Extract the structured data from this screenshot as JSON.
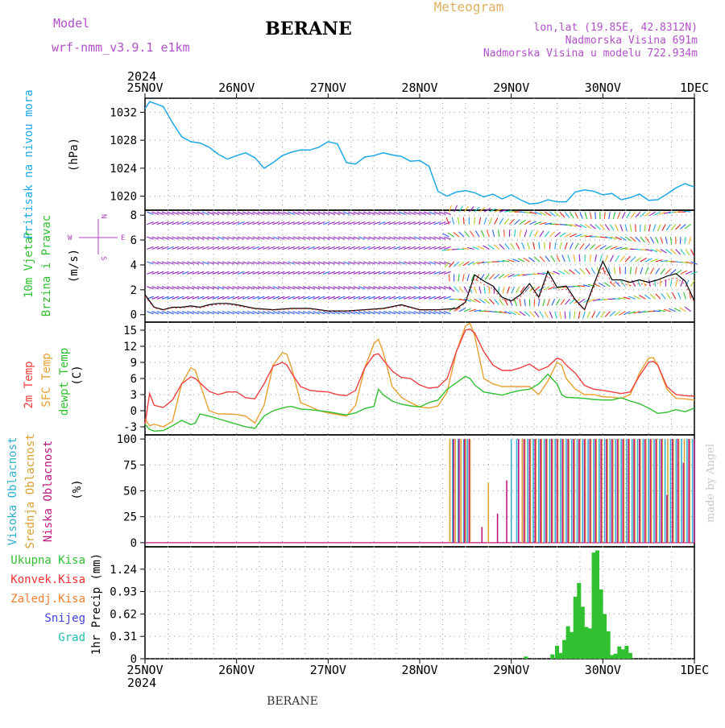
{
  "header": {
    "model_label": "Model",
    "model_name": "wrf-nmm_v3.9.1 e1km",
    "station": "BERANE",
    "product": "Meteogram",
    "lonlat": "lon,lat (19.85E, 42.8312N)",
    "elevation": "Nadmorska Visina 691m",
    "elevation_model": "Nadmorska Visina u modelu 722.934m",
    "footer_station": "BERANE",
    "credit": "made by Angel"
  },
  "time_axis": {
    "year": "2024",
    "ticks": [
      "25NOV",
      "26NOV",
      "27NOV",
      "28NOV",
      "29NOV",
      "30NOV",
      "1DEC"
    ]
  },
  "colors": {
    "pressure": "#1ea8e6",
    "temp2m": "#f04040",
    "sfctemp": "#e8a030",
    "dewpt": "#30c030",
    "high_cloud": "#30b0d0",
    "mid_cloud": "#d8a030",
    "low_cloud": "#c01880",
    "precip_total": "#30c030",
    "conv": "#f03030",
    "frz": "#f08030",
    "snow": "#4040e0",
    "hail": "#20c0b0",
    "wind_label": "#30c030",
    "compass": "#b040c0"
  },
  "chart_data": [
    {
      "type": "line",
      "panel": "pressure",
      "ylabel": "Pritisak na nivou mora",
      "units": "(hPa)",
      "ylim": [
        1018,
        1034
      ],
      "yticks": [
        "1032",
        "1028",
        "1024",
        "1020"
      ],
      "x_days": [
        0,
        0.05,
        0.1,
        0.2,
        0.3,
        0.4,
        0.5,
        0.6,
        0.7,
        0.8,
        0.9,
        1.0,
        1.1,
        1.2,
        1.3,
        1.4,
        1.5,
        1.6,
        1.7,
        1.8,
        1.9,
        2.0,
        2.1,
        2.2,
        2.3,
        2.4,
        2.5,
        2.6,
        2.7,
        2.8,
        2.9,
        3.0,
        3.1,
        3.2,
        3.3,
        3.4,
        3.5,
        3.6,
        3.7,
        3.8,
        3.9,
        4.0,
        4.1,
        4.2,
        4.3,
        4.4,
        4.5,
        4.6,
        4.7,
        4.8,
        4.9,
        5.0,
        5.1,
        5.2,
        5.3,
        5.4,
        5.5,
        5.6,
        5.7,
        5.8,
        5.9,
        6.0
      ],
      "series": [
        {
          "name": "Pritisak na nivou mora",
          "values": [
            1032.5,
            1033.5,
            1033.3,
            1032.8,
            1030.5,
            1028.5,
            1027.8,
            1027.6,
            1027.0,
            1026.0,
            1025.3,
            1025.8,
            1026.2,
            1025.5,
            1024.0,
            1024.8,
            1025.8,
            1026.3,
            1026.6,
            1026.6,
            1027.0,
            1027.8,
            1027.5,
            1024.8,
            1024.6,
            1025.6,
            1025.8,
            1026.2,
            1025.9,
            1025.7,
            1025.0,
            1025.1,
            1024.3,
            1020.7,
            1020.0,
            1020.6,
            1020.8,
            1020.5,
            1019.9,
            1020.3,
            1019.6,
            1020.2,
            1019.5,
            1018.9,
            1019.0,
            1019.5,
            1019.2,
            1019.2,
            1020.6,
            1020.9,
            1020.7,
            1020.2,
            1020.4,
            1019.5,
            1019.8,
            1020.3,
            1019.4,
            1019.5,
            1020.3,
            1021.2,
            1021.8,
            1021.3
          ]
        }
      ]
    },
    {
      "type": "line",
      "panel": "wind",
      "ylabel": "10m Vjetar Brzina i Pravac",
      "units": "(m/s)",
      "compass_n": "N",
      "compass_s": "S",
      "compass_e": "E",
      "compass_w": "W",
      "ylim": [
        -0.6,
        8.4
      ],
      "yticks": [
        "8",
        "6",
        "4",
        "2",
        "0"
      ],
      "x_days": [
        0,
        0.1,
        0.2,
        0.3,
        0.4,
        0.5,
        0.6,
        0.7,
        0.8,
        0.9,
        1.0,
        1.2,
        1.4,
        1.6,
        1.8,
        2.0,
        2.2,
        2.4,
        2.6,
        2.8,
        3.0,
        3.2,
        3.4,
        3.5,
        3.6,
        3.7,
        3.8,
        3.9,
        4.0,
        4.1,
        4.2,
        4.3,
        4.4,
        4.5,
        4.6,
        4.7,
        4.8,
        4.9,
        5.0,
        5.1,
        5.2,
        5.3,
        5.4,
        5.5,
        5.6,
        5.7,
        5.8,
        5.9,
        6.0
      ],
      "series": [
        {
          "name": "speed",
          "values": [
            1.6,
            0.6,
            0.4,
            0.6,
            0.6,
            0.7,
            0.6,
            0.8,
            0.9,
            0.9,
            0.8,
            0.5,
            0.4,
            0.5,
            0.5,
            0.3,
            0.3,
            0.4,
            0.5,
            0.8,
            0.4,
            0.4,
            0.5,
            1.0,
            3.2,
            2.7,
            2.3,
            1.4,
            1.1,
            1.6,
            2.5,
            1.4,
            3.5,
            2.2,
            2.3,
            1.2,
            0.4,
            2.4,
            4.3,
            2.8,
            2.8,
            2.6,
            2.8,
            2.6,
            2.8,
            3.1,
            3.3,
            2.7,
            1.1
          ]
        }
      ]
    },
    {
      "type": "line",
      "panel": "temperature",
      "ylabel_2m": "2m Temp",
      "ylabel_sfc": "SFC Temp",
      "ylabel_dew": "dewpt Temp",
      "units": "(C)",
      "ylim": [
        -4.5,
        16.5
      ],
      "yticks": [
        "15",
        "12",
        "9",
        "6",
        "3",
        "0",
        "-3"
      ],
      "x_days": [
        0,
        0.05,
        0.1,
        0.2,
        0.3,
        0.4,
        0.5,
        0.55,
        0.6,
        0.7,
        0.8,
        0.9,
        1.0,
        1.1,
        1.2,
        1.3,
        1.4,
        1.5,
        1.55,
        1.6,
        1.7,
        1.8,
        1.9,
        2.0,
        2.1,
        2.2,
        2.3,
        2.4,
        2.5,
        2.55,
        2.6,
        2.7,
        2.8,
        2.9,
        3.0,
        3.1,
        3.2,
        3.3,
        3.4,
        3.5,
        3.55,
        3.6,
        3.7,
        3.8,
        3.9,
        4.0,
        4.1,
        4.2,
        4.3,
        4.4,
        4.5,
        4.55,
        4.6,
        4.7,
        4.8,
        4.9,
        5.0,
        5.1,
        5.2,
        5.3,
        5.4,
        5.5,
        5.55,
        5.6,
        5.7,
        5.8,
        5.9,
        6.0
      ],
      "series": [
        {
          "name": "2m Temp",
          "values": [
            -2.5,
            3.2,
            1.0,
            0.6,
            2.0,
            5.0,
            6.3,
            6.0,
            5.2,
            3.6,
            3.0,
            3.5,
            3.5,
            2.4,
            2.2,
            5.0,
            8.3,
            9.0,
            8.5,
            7.0,
            4.5,
            3.8,
            3.6,
            3.5,
            3.0,
            2.8,
            3.8,
            8.0,
            10.4,
            10.6,
            9.5,
            7.4,
            6.2,
            6.0,
            4.8,
            4.2,
            4.4,
            6.0,
            11.0,
            15.0,
            15.2,
            14.5,
            11.0,
            8.5,
            7.5,
            7.5,
            8.0,
            8.7,
            7.5,
            8.2,
            9.8,
            9.5,
            8.5,
            7.0,
            4.7,
            4.0,
            3.8,
            3.5,
            3.2,
            3.5,
            6.5,
            9.0,
            9.2,
            8.5,
            4.5,
            3.0,
            2.8,
            2.7
          ]
        },
        {
          "name": "SFC Temp",
          "values": [
            -1.5,
            -2.8,
            -2.5,
            -3.0,
            -2.0,
            5.0,
            8.0,
            7.5,
            5.0,
            0.0,
            -0.6,
            -0.6,
            -0.7,
            -1.0,
            -2.3,
            1.0,
            8.5,
            10.8,
            10.5,
            8.0,
            1.5,
            0.8,
            0.0,
            -0.4,
            -0.7,
            -1.0,
            1.0,
            8.0,
            12.5,
            13.3,
            11.0,
            4.5,
            2.5,
            1.5,
            0.7,
            0.5,
            0.9,
            3.5,
            11.0,
            15.8,
            16.3,
            14.0,
            6.0,
            5.0,
            4.5,
            4.5,
            4.5,
            4.5,
            3.0,
            5.5,
            9.0,
            8.5,
            6.0,
            4.0,
            3.0,
            3.0,
            2.6,
            2.5,
            2.3,
            3.0,
            7.0,
            9.8,
            9.9,
            8.5,
            4.0,
            2.3,
            2.2,
            2.0
          ]
        },
        {
          "name": "dewpt Temp",
          "values": [
            -2.5,
            -3.5,
            -3.8,
            -3.7,
            -2.8,
            -1.8,
            -2.6,
            -2.3,
            -0.6,
            -1.0,
            -1.5,
            -2.0,
            -2.5,
            -3.0,
            -3.3,
            -1.0,
            0.0,
            0.5,
            0.7,
            0.8,
            0.3,
            0.2,
            0.0,
            -0.2,
            -0.5,
            -0.8,
            -0.4,
            0.4,
            0.8,
            4.0,
            3.0,
            1.8,
            1.2,
            0.9,
            0.7,
            1.5,
            2.0,
            4.0,
            5.2,
            6.4,
            6.0,
            4.8,
            3.5,
            3.2,
            2.9,
            3.4,
            3.8,
            4.0,
            5.0,
            6.8,
            5.0,
            3.0,
            2.5,
            2.4,
            2.3,
            2.1,
            2.0,
            2.0,
            2.4,
            1.8,
            1.3,
            0.5,
            0.0,
            -0.5,
            -0.3,
            0.2,
            -0.2,
            0.5
          ]
        }
      ]
    },
    {
      "type": "bar",
      "panel": "cloud_cover",
      "ylabel_high": "Visoka Oblacnost",
      "ylabel_mid": "Srednja Oblacnost",
      "ylabel_low": "Niska Oblacnost",
      "units": "(%)",
      "ylim": [
        -4,
        104
      ],
      "yticks": [
        "100",
        "75",
        "50",
        "25",
        "0"
      ],
      "series": [
        {
          "name": "Visoka Oblacnost",
          "x_days": [
            3.36,
            3.42,
            3.48,
            3.52,
            4.0,
            4.06,
            4.12,
            4.18,
            4.24,
            4.3,
            4.36,
            4.42,
            4.48,
            4.54,
            4.6,
            4.66,
            4.72,
            4.78,
            4.84,
            4.9,
            4.96,
            5.02,
            5.08,
            5.14,
            5.2,
            5.26,
            5.32,
            5.38,
            5.44,
            5.5,
            5.56,
            5.62,
            5.68,
            5.74,
            5.8,
            5.86,
            5.92,
            5.98
          ],
          "values": [
            100,
            100,
            100,
            100,
            100,
            100,
            100,
            100,
            100,
            100,
            100,
            100,
            100,
            100,
            100,
            100,
            100,
            100,
            100,
            100,
            100,
            100,
            100,
            100,
            100,
            100,
            100,
            100,
            100,
            100,
            100,
            100,
            100,
            100,
            100,
            100,
            100,
            100
          ]
        },
        {
          "name": "Srednja Oblacnost",
          "x_days": [
            3.33,
            3.39,
            3.45,
            3.5,
            3.55,
            3.75,
            4.12,
            4.15,
            4.21,
            4.27,
            4.33,
            4.39,
            4.45,
            4.51,
            4.57,
            4.63,
            4.69,
            4.75,
            4.81,
            4.87,
            4.93,
            4.99,
            5.05,
            5.11,
            5.17,
            5.23,
            5.29,
            5.35,
            5.41,
            5.47,
            5.53,
            5.59,
            5.65,
            5.71,
            5.77,
            5.83,
            5.89,
            5.95
          ],
          "values": [
            100,
            100,
            100,
            100,
            100,
            58,
            100,
            100,
            100,
            100,
            100,
            100,
            100,
            100,
            100,
            100,
            100,
            100,
            100,
            100,
            100,
            100,
            100,
            100,
            100,
            100,
            100,
            100,
            100,
            100,
            100,
            100,
            100,
            100,
            100,
            100,
            100,
            100
          ]
        },
        {
          "name": "Niska Oblacnost",
          "x_days": [
            3.37,
            3.43,
            3.49,
            3.54,
            3.68,
            3.85,
            3.95,
            4.08,
            4.14,
            4.2,
            4.26,
            4.32,
            4.38,
            4.44,
            4.5,
            4.56,
            4.62,
            4.68,
            4.74,
            4.8,
            4.86,
            4.92,
            4.98,
            5.04,
            5.1,
            5.16,
            5.22,
            5.28,
            5.34,
            5.4,
            5.46,
            5.52,
            5.58,
            5.64,
            5.7,
            5.76,
            5.82,
            5.88,
            5.94,
            6.0
          ],
          "values": [
            100,
            100,
            100,
            100,
            15,
            28,
            60,
            100,
            100,
            100,
            100,
            100,
            100,
            100,
            100,
            100,
            100,
            100,
            100,
            100,
            100,
            100,
            100,
            100,
            100,
            100,
            100,
            100,
            100,
            100,
            100,
            100,
            100,
            100,
            46,
            100,
            100,
            77,
            100,
            100
          ]
        }
      ]
    },
    {
      "type": "bar",
      "panel": "precipitation",
      "legend": [
        "Ukupna Kisa",
        "Konvek.Kisa",
        "Zaledj.Kisa",
        "Snijeg",
        "Grad"
      ],
      "ylabel": "1hr Precip",
      "units": "(mm)",
      "ylim": [
        0,
        1.55
      ],
      "yticks": [
        "1.24",
        "0.93",
        "0.62",
        "0.31",
        "0"
      ],
      "series": [
        {
          "name": "Ukupna Kisa",
          "x_days": [
            4.16,
            4.45,
            4.5,
            4.54,
            4.58,
            4.62,
            4.66,
            4.7,
            4.74,
            4.78,
            4.82,
            4.86,
            4.9,
            4.94,
            4.98,
            5.02,
            5.06,
            5.1,
            5.14,
            5.18,
            5.22,
            5.26,
            5.3
          ],
          "values": [
            0.03,
            0.06,
            0.18,
            0.08,
            0.26,
            0.45,
            0.37,
            0.86,
            1.05,
            0.72,
            0.44,
            0.42,
            1.47,
            1.5,
            0.96,
            0.62,
            0.38,
            0.05,
            0.07,
            0.17,
            0.13,
            0.18,
            0.08
          ]
        }
      ]
    }
  ]
}
